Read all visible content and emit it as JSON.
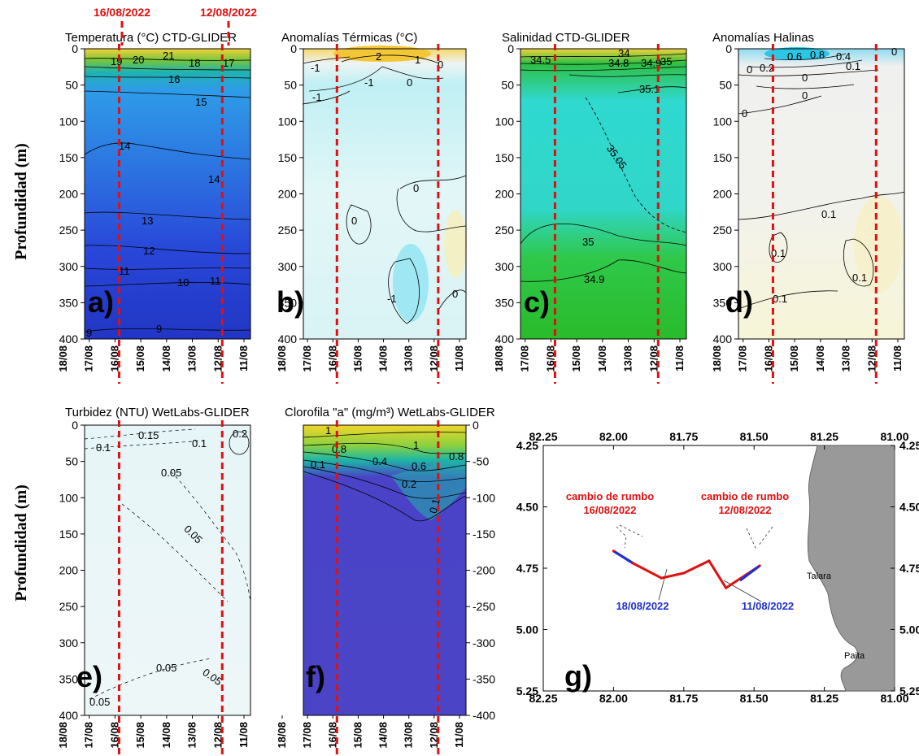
{
  "header": {
    "turn_label_1": "16/08/2022",
    "turn_label_2": "12/08/2022"
  },
  "y_axis_label": "Profundidad (m)",
  "date_ticks": [
    "18/08",
    "17/08",
    "16/08",
    "15/08",
    "14/08",
    "13/08",
    "12/08",
    "11/08"
  ],
  "depth_ticks": [
    "0",
    "50",
    "100",
    "150",
    "200",
    "250",
    "300",
    "350",
    "400"
  ],
  "depth_ticks_negative": [
    "0",
    "-50",
    "-100",
    "-150",
    "-200",
    "-250",
    "-300",
    "-350",
    "-400"
  ],
  "colors": {
    "turn_line": "#e01010",
    "track_red": "#e01010",
    "track_blue": "#1f2fd0",
    "land": "#999999"
  },
  "panels": [
    {
      "id": "a",
      "title": "Temperatura (°C) CTD-GLIDER",
      "letter": "a)",
      "contour_labels": [
        {
          "t": "19"
        },
        {
          "t": "20"
        },
        {
          "t": "21"
        },
        {
          "t": "18"
        },
        {
          "t": "17"
        },
        {
          "t": "16"
        },
        {
          "t": "15"
        },
        {
          "t": "14"
        },
        {
          "t": "14"
        },
        {
          "t": "13"
        },
        {
          "t": "12"
        },
        {
          "t": "11"
        },
        {
          "t": "10"
        },
        {
          "t": "11"
        },
        {
          "t": "9"
        },
        {
          "t": "9"
        }
      ]
    },
    {
      "id": "b",
      "title": "Anomalías Térmicas (°C)",
      "letter": "b)",
      "contour_labels": [
        {
          "t": "2"
        },
        {
          "t": "1"
        },
        {
          "t": "-1"
        },
        {
          "t": "-1"
        },
        {
          "t": "0"
        },
        {
          "t": "-1"
        },
        {
          "t": "0"
        },
        {
          "t": "0"
        },
        {
          "t": "-1"
        },
        {
          "t": "0"
        },
        {
          "t": "0"
        }
      ]
    },
    {
      "id": "c",
      "title": "Salinidad CTD-GLIDER",
      "letter": "c)",
      "contour_labels": [
        {
          "t": "34.5"
        },
        {
          "t": "34"
        },
        {
          "t": "34.8"
        },
        {
          "t": "34.9"
        },
        {
          "t": "35"
        },
        {
          "t": "35.1"
        },
        {
          "t": "35.05"
        },
        {
          "t": "35"
        },
        {
          "t": "34.9"
        }
      ]
    },
    {
      "id": "d",
      "title": "Anomalías Halinas",
      "letter": "d)",
      "contour_labels": [
        {
          "t": "0.6"
        },
        {
          "t": "0.8"
        },
        {
          "t": "0.4"
        },
        {
          "t": "0.2"
        },
        {
          "t": "0.1"
        },
        {
          "t": "0"
        },
        {
          "t": "0"
        },
        {
          "t": "0"
        },
        {
          "t": "0"
        },
        {
          "t": "0"
        },
        {
          "t": "0.1"
        },
        {
          "t": "0.1"
        },
        {
          "t": "0.1"
        },
        {
          "t": "0.1"
        }
      ]
    },
    {
      "id": "e",
      "title": "Turbidez (NTU) WetLabs-GLIDER",
      "letter": "e)",
      "contour_labels": [
        {
          "t": "0.15"
        },
        {
          "t": "0.1"
        },
        {
          "t": "0.1"
        },
        {
          "t": "0.2"
        },
        {
          "t": "0.05"
        },
        {
          "t": "0.05"
        },
        {
          "t": "0.05"
        },
        {
          "t": "0.05"
        },
        {
          "t": "0.05"
        }
      ]
    },
    {
      "id": "f",
      "title": "Clorofila \"a\" (mg/m³) WetLabs-GLIDER",
      "letter": "f)",
      "contour_labels": [
        {
          "t": "1"
        },
        {
          "t": "1"
        },
        {
          "t": "0.8"
        },
        {
          "t": "0.4"
        },
        {
          "t": "0.6"
        },
        {
          "t": "0.8"
        },
        {
          "t": "0.1"
        },
        {
          "t": "0.2"
        },
        {
          "t": "0.1"
        }
      ]
    }
  ],
  "map": {
    "letter": "g)",
    "lon_ticks": [
      "82.25",
      "82.00",
      "81.75",
      "81.50",
      "81.25",
      "81.00"
    ],
    "lat_ticks": [
      "4.25",
      "4.50",
      "4.75",
      "5.00",
      "5.25"
    ],
    "annotations": {
      "turn1_a": "cambio de rumbo",
      "turn1_b": "16/08/2022",
      "turn2_a": "cambio de rumbo",
      "turn2_b": "12/08/2022",
      "start": "18/08/2022",
      "end": "11/08/2022",
      "town1": "Talara",
      "town2": "Paita"
    }
  },
  "chart_data": [
    {
      "type": "heatmap",
      "title": "Temperatura (°C) CTD-GLIDER",
      "ylabel": "Profundidad (m)",
      "x": [
        "18/08",
        "17/08",
        "16/08",
        "15/08",
        "14/08",
        "13/08",
        "12/08",
        "11/08"
      ],
      "ylim": [
        400,
        0
      ],
      "contours": [
        21,
        20,
        19,
        18,
        17,
        16,
        15,
        14,
        13,
        12,
        11,
        10,
        9
      ]
    },
    {
      "type": "heatmap",
      "title": "Anomalías Térmicas (°C)",
      "x": [
        "18/08",
        "17/08",
        "16/08",
        "15/08",
        "14/08",
        "13/08",
        "12/08",
        "11/08"
      ],
      "ylim": [
        400,
        0
      ],
      "contours": [
        2,
        1,
        0,
        -1
      ]
    },
    {
      "type": "heatmap",
      "title": "Salinidad CTD-GLIDER",
      "x": [
        "18/08",
        "17/08",
        "16/08",
        "15/08",
        "14/08",
        "13/08",
        "12/08",
        "11/08"
      ],
      "ylim": [
        400,
        0
      ],
      "contours": [
        34,
        34.5,
        34.8,
        34.9,
        35,
        35.05,
        35.1
      ]
    },
    {
      "type": "heatmap",
      "title": "Anomalías Halinas",
      "x": [
        "18/08",
        "17/08",
        "16/08",
        "15/08",
        "14/08",
        "13/08",
        "12/08",
        "11/08"
      ],
      "ylim": [
        400,
        0
      ],
      "contours": [
        0.8,
        0.6,
        0.4,
        0.2,
        0.1,
        0
      ]
    },
    {
      "type": "heatmap",
      "title": "Turbidez (NTU) WetLabs-GLIDER",
      "ylabel": "Profundidad (m)",
      "x": [
        "18/08",
        "17/08",
        "16/08",
        "15/08",
        "14/08",
        "13/08",
        "12/08",
        "11/08"
      ],
      "ylim": [
        400,
        0
      ],
      "contours": [
        0.2,
        0.15,
        0.1,
        0.05
      ]
    },
    {
      "type": "heatmap",
      "title": "Clorofila \"a\" (mg/m³) WetLabs-GLIDER",
      "x": [
        "18/08",
        "17/08",
        "16/08",
        "15/08",
        "14/08",
        "13/08",
        "12/08",
        "11/08"
      ],
      "ylim": [
        -400,
        0
      ],
      "contours": [
        1,
        0.8,
        0.6,
        0.4,
        0.2,
        0.1
      ]
    },
    {
      "type": "scatter",
      "title": "",
      "xlim": [
        82.25,
        81.0
      ],
      "ylim": [
        5.25,
        4.25
      ],
      "series": [
        {
          "points": [
            [
              82.0,
              4.68
            ],
            [
              81.93,
              4.73
            ],
            [
              81.83,
              4.79
            ],
            [
              81.75,
              4.77
            ],
            [
              81.66,
              4.72
            ],
            [
              81.6,
              4.83
            ],
            [
              81.48,
              4.74
            ]
          ]
        }
      ]
    }
  ]
}
